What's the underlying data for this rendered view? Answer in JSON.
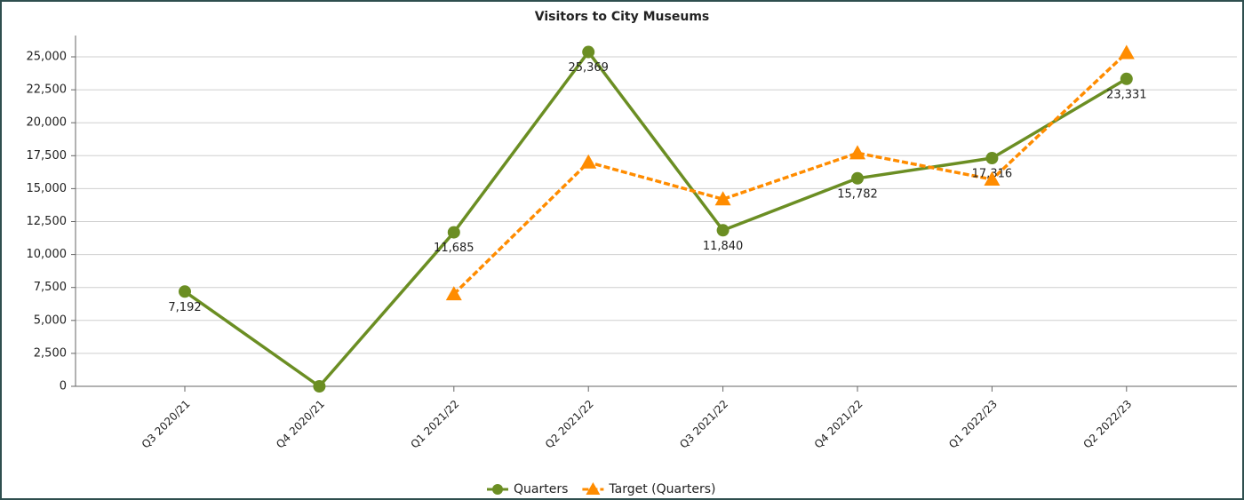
{
  "chart_data": {
    "type": "line",
    "title": "Visitors to City Museums",
    "categories": [
      "Q3 2020/21",
      "Q4 2020/21",
      "Q1 2021/22",
      "Q2 2021/22",
      "Q3 2021/22",
      "Q4 2021/22",
      "Q1 2022/23",
      "Q2 2022/23"
    ],
    "series": [
      {
        "name": "Quarters",
        "color": "#6b8e23",
        "marker": "circle",
        "dashed": false,
        "values": [
          7192,
          0,
          11685,
          25369,
          11840,
          15782,
          17316,
          23331
        ],
        "value_labels": [
          "7,192",
          null,
          "11,685",
          "25,369",
          "11,840",
          "15,782",
          "17,316",
          "23,331"
        ]
      },
      {
        "name": "Target (Quarters)",
        "color": "#ff8c00",
        "marker": "triangle",
        "dashed": true,
        "values": [
          null,
          null,
          7000,
          17000,
          14200,
          17700,
          15700,
          25300
        ]
      }
    ],
    "ylim": [
      0,
      25000
    ],
    "yticks": [
      0,
      {
        "value": 2500,
        "label": "2,500"
      },
      {
        "value": 5000,
        "label": "5,000"
      },
      {
        "value": 7500,
        "label": "7,500"
      },
      {
        "value": 10000,
        "label": "10,000"
      },
      {
        "value": 12500,
        "label": "12,500"
      },
      {
        "value": 15000,
        "label": "15,000"
      },
      {
        "value": 17500,
        "label": "17,500"
      },
      {
        "value": 20000,
        "label": "20,000"
      },
      {
        "value": 22500,
        "label": "22,500"
      },
      {
        "value": 25000,
        "label": "25,000"
      }
    ],
    "grid": true,
    "legend": "bottom"
  }
}
